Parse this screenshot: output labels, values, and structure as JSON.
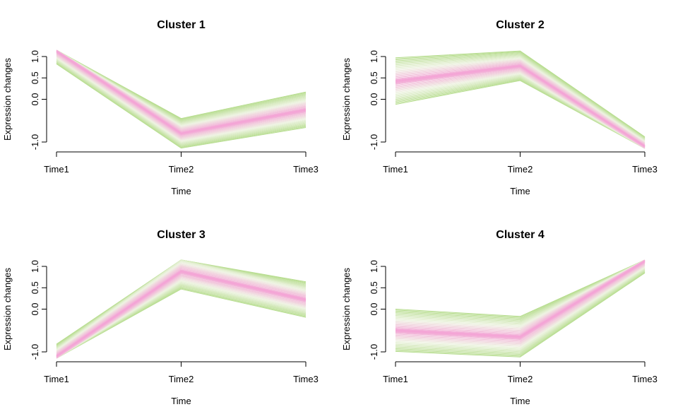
{
  "colors": {
    "low_membership": "#b5dc8c",
    "mid_membership": "#eef3e2",
    "high_membership": "#f4a4d6",
    "axis": "#000000"
  },
  "chart_data": [
    {
      "type": "line",
      "title": "Cluster 1",
      "xlabel": "Time",
      "ylabel": "Expression changes",
      "x": [
        "Time1",
        "Time2",
        "Time3"
      ],
      "yticks": [
        -1.0,
        0.0,
        0.5,
        1.0
      ],
      "ytick_labels": [
        "-1.0",
        "0.0",
        "0.5",
        "1.0"
      ],
      "ylim": [
        -1.15,
        1.15
      ],
      "center": [
        1.12,
        -0.8,
        -0.25
      ],
      "spread": [
        0.3,
        0.35,
        0.42
      ],
      "n_lines": 48,
      "legend": "none",
      "grid": false
    },
    {
      "type": "line",
      "title": "Cluster 2",
      "xlabel": "Time",
      "ylabel": "Expression changes",
      "x": [
        "Time1",
        "Time2",
        "Time3"
      ],
      "yticks": [
        -1.0,
        0.0,
        0.5,
        1.0
      ],
      "ytick_labels": [
        "-1.0",
        "0.0",
        "0.5",
        "1.0"
      ],
      "ylim": [
        -1.15,
        1.15
      ],
      "center": [
        0.42,
        0.78,
        -1.1
      ],
      "spread": [
        0.55,
        0.35,
        0.22
      ],
      "n_lines": 48,
      "legend": "none",
      "grid": false
    },
    {
      "type": "line",
      "title": "Cluster 3",
      "xlabel": "Time",
      "ylabel": "Expression changes",
      "x": [
        "Time1",
        "Time2",
        "Time3"
      ],
      "yticks": [
        -1.0,
        0.0,
        0.5,
        1.0
      ],
      "ytick_labels": [
        "-1.0",
        "0.0",
        "0.5",
        "1.0"
      ],
      "ylim": [
        -1.15,
        1.15
      ],
      "center": [
        -1.1,
        0.88,
        0.22
      ],
      "spread": [
        0.28,
        0.42,
        0.42
      ],
      "n_lines": 48,
      "legend": "none",
      "grid": false
    },
    {
      "type": "line",
      "title": "Cluster 4",
      "xlabel": "Time",
      "ylabel": "Expression changes",
      "x": [
        "Time1",
        "Time2",
        "Time3"
      ],
      "yticks": [
        -1.0,
        0.0,
        0.5,
        1.0
      ],
      "ytick_labels": [
        "-1.0",
        "0.0",
        "0.5",
        "1.0"
      ],
      "ylim": [
        -1.15,
        1.15
      ],
      "center": [
        -0.5,
        -0.65,
        1.12
      ],
      "spread": [
        0.5,
        0.48,
        0.28
      ],
      "n_lines": 48,
      "legend": "none",
      "grid": false
    }
  ]
}
